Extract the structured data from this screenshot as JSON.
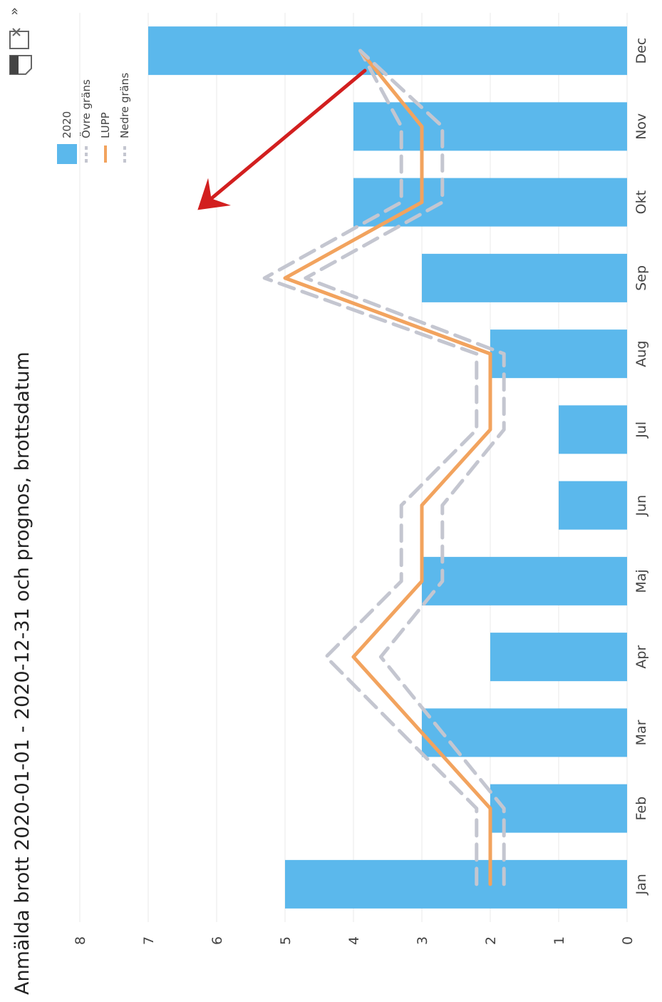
{
  "colors": {
    "bar": "#5bb8ec",
    "lupp": "#f2a35e",
    "bounds": "#c4c6d0",
    "arrow": "#d21f1f",
    "icon": "#666666"
  },
  "toolbar": {
    "icons": [
      "document-icon",
      "excel-export-icon",
      "more-chevron-icon"
    ],
    "more_label": "»"
  },
  "chart_data": {
    "type": "bar",
    "title": "Anmälda brott 2020-01-01 - 2020-12-31 och prognos, brottsdatum",
    "categories": [
      "Jan",
      "Feb",
      "Mar",
      "Apr",
      "Maj",
      "Jun",
      "Jul",
      "Aug",
      "Sep",
      "Okt",
      "Nov",
      "Dec"
    ],
    "ylim": [
      0,
      8
    ],
    "yticks": [
      0,
      1,
      2,
      3,
      4,
      5,
      6,
      7,
      8
    ],
    "grid": true,
    "legend_position": "top-right",
    "series": [
      {
        "name": "2020",
        "type": "bar",
        "values": [
          5,
          2,
          3,
          2,
          3,
          1,
          1,
          2,
          3,
          4,
          4,
          7
        ]
      },
      {
        "name": "Övre gräns",
        "type": "line-dashed",
        "values": [
          2.2,
          2.2,
          3.3,
          4.4,
          3.3,
          3.3,
          2.2,
          2.2,
          5.3,
          3.3,
          3.3,
          3.9
        ]
      },
      {
        "name": "LUPP",
        "type": "line",
        "values": [
          2,
          2,
          3,
          4,
          3,
          3,
          2,
          2,
          5,
          3,
          3,
          3.9
        ]
      },
      {
        "name": "Nedre gräns",
        "type": "line-dashed",
        "values": [
          1.8,
          1.8,
          2.7,
          3.6,
          2.7,
          2.7,
          1.8,
          1.8,
          4.7,
          2.7,
          2.7,
          3.9
        ]
      }
    ],
    "annotations": [
      {
        "type": "arrow",
        "points_to": "Dec"
      }
    ]
  }
}
